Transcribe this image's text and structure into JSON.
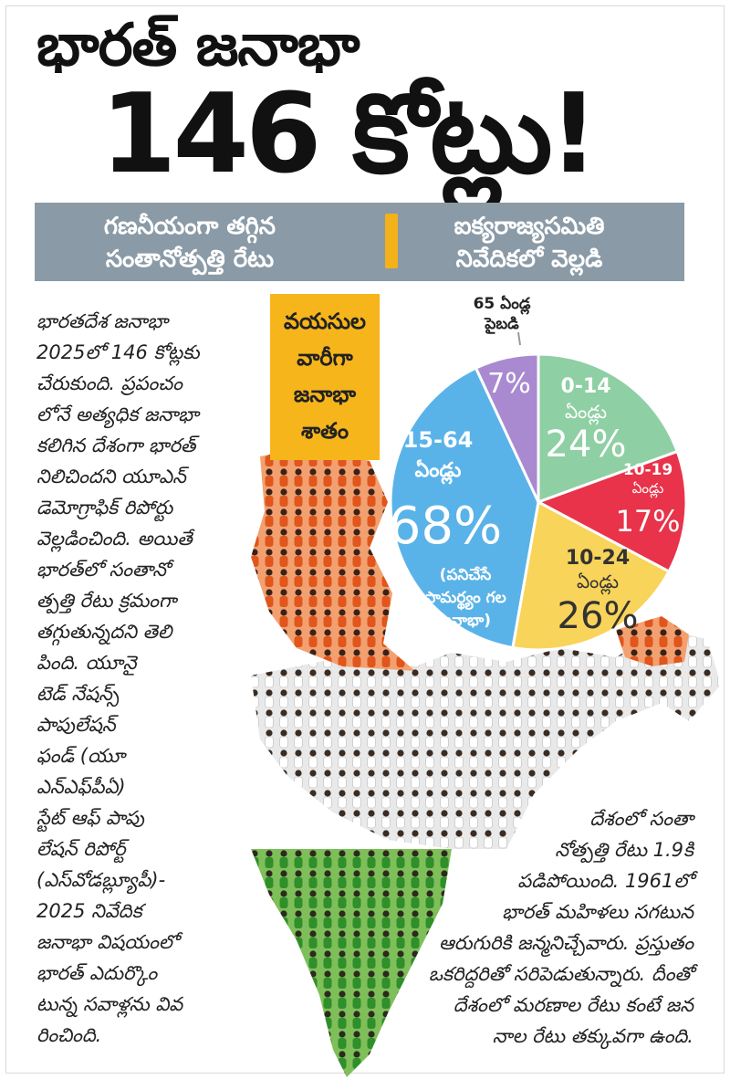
{
  "headline": {
    "line1": "భారత్ జనాభా",
    "line2": "146 కోట్లు!"
  },
  "banner": {
    "left_line1": "గణనీయంగా తగ్గిన",
    "left_line2": "సంతానోత్పత్తి రేటు",
    "right_line1": "ఐక్యరాజ్యసమితి",
    "right_line2": "నివేదికలో వెల్లడి"
  },
  "box_label": {
    "line1": "వయసుల",
    "line2": "వారీగా",
    "line3": "జనాభా",
    "line4": "శాతం"
  },
  "left_text": [
    "భారతదేశ జనాభా",
    "2025లో 146 కోట్లకు",
    "చేరుకుంది. ప్రపంచం",
    "లోనే అత్యధిక జనాభా",
    "కలిగిన దేశంగా భారత్",
    "నిలిచిందని యూఎన్",
    "డెమోగ్రాఫిక్ రిపోర్టు",
    "వెల్లడించింది. అయితే",
    "భారత్‌లో సంతానో",
    "త్పత్తి రేటు క్రమంగా",
    "తగ్గుతున్నదని తెలి",
    "పింది. యూనై",
    "టెడ్ నేషన్స్",
    "పాపులేషన్",
    "ఫండ్ (యూ",
    "ఎన్‌ఎఫ్‌పీఏ)",
    "స్టేట్ ఆఫ్ పాపు",
    "లేషన్ రిపోర్ట్",
    "(ఎస్‌వోడబ్ల్యూపీ)-",
    "2025 నివేదిక",
    "జనాభా విషయంలో",
    "భారత్ ఎదుర్కొం",
    "టున్న సవాళ్లను వివ",
    "రించింది."
  ],
  "right_text": [
    "దేశంలో సంతా",
    "నోత్పత్తి రేటు 1.9కి",
    "పడిపోయింది. 1961లో",
    "భారత్ మహిళలు సగటున",
    "ఆరుగురికి జన్మనిచ్చేవారు. ప్రస్తుతం",
    "ఒకరిద్దరితో సరిపెడుతున్నారు. దీంతో",
    "దేశంలో మరణాల రేటు కంటే జన",
    "నాల రేటు తక్కువగా ఉంది."
  ],
  "colors": {
    "green": "#8fcfa4",
    "red": "#e8334a",
    "yellow": "#f9d45a",
    "blue": "#5ab3e8",
    "purple": "#a98ad0",
    "box": "#f7b51c",
    "banner": "#8a9aa6"
  },
  "chart_data": {
    "type": "pie",
    "slices": [
      {
        "label": "0-14 ఏండ్లు",
        "value": 24,
        "display": "24%",
        "color": "#8fcfa4"
      },
      {
        "label": "10-19 ఏండ్లు",
        "value": 17,
        "display": "17%",
        "color": "#e8334a"
      },
      {
        "label": "10-24 ఏండ్లు",
        "value": 26,
        "display": "26%",
        "color": "#f9d45a"
      },
      {
        "label": "15-64 ఏండ్లు",
        "value": 68,
        "display": "68%",
        "note": "(పనిచేసే సామర్థ్యం గల జనాభా)",
        "color": "#5ab3e8"
      },
      {
        "label": "65 ఏండ్ల పైబడి",
        "value": 7,
        "display": "7%",
        "color": "#a98ad0"
      }
    ]
  }
}
